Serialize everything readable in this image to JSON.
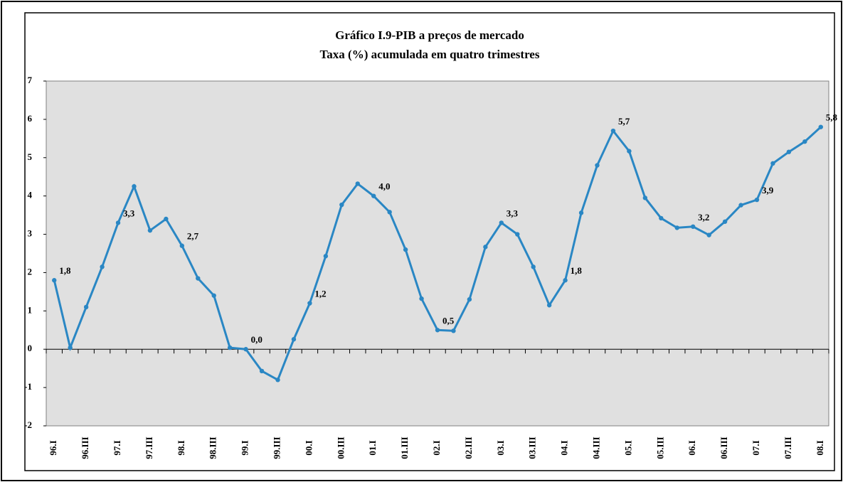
{
  "chart_data": {
    "type": "line",
    "title": "Gráfico I.9-PIB a preços de mercado",
    "subtitle": "Taxa (%) acumulada em quatro trimestres",
    "categories": [
      "96.I",
      null,
      "96.III",
      null,
      "97.I",
      null,
      "97.III",
      null,
      "98.I",
      null,
      "98.III",
      null,
      "99.I",
      null,
      "99.III",
      null,
      "00.I",
      null,
      "00.III",
      null,
      "01.I",
      null,
      "01.III",
      null,
      "02.I",
      null,
      "02.III",
      null,
      "03.I",
      null,
      "03.III",
      null,
      "04.I",
      null,
      "04.III",
      null,
      "05.I",
      null,
      "05.III",
      null,
      "06.I",
      null,
      "06.III",
      null,
      "07.I",
      null,
      "07.III",
      null,
      "08.I"
    ],
    "values": [
      1.8,
      0.04,
      1.1,
      2.15,
      3.3,
      4.25,
      3.1,
      3.4,
      2.7,
      1.85,
      1.4,
      0.04,
      0.0,
      -0.57,
      -0.8,
      0.26,
      1.2,
      2.43,
      3.77,
      4.32,
      4.0,
      3.58,
      2.6,
      1.32,
      0.5,
      0.48,
      1.3,
      2.67,
      3.3,
      3.0,
      2.15,
      1.15,
      1.8,
      3.56,
      4.8,
      5.7,
      5.17,
      3.95,
      3.42,
      3.17,
      3.2,
      2.98,
      3.33,
      3.76,
      3.9,
      4.85,
      5.15,
      5.42,
      5.8
    ],
    "value_labels": [
      "1,8",
      null,
      null,
      null,
      "3,3",
      null,
      null,
      null,
      "2,7",
      null,
      null,
      null,
      "0,0",
      null,
      null,
      null,
      "1,2",
      null,
      null,
      null,
      "4,0",
      null,
      null,
      null,
      "0,5",
      null,
      null,
      null,
      "3,3",
      null,
      null,
      null,
      "1,8",
      null,
      null,
      "5,7",
      null,
      null,
      null,
      null,
      "3,2",
      null,
      null,
      null,
      "3,9",
      null,
      null,
      null,
      "5,8"
    ],
    "color": "#2a87c4",
    "ylim": [
      -2,
      7
    ],
    "yticks": [
      -2,
      -1,
      0,
      1,
      2,
      3,
      4,
      5,
      6,
      7
    ],
    "grid": false
  }
}
